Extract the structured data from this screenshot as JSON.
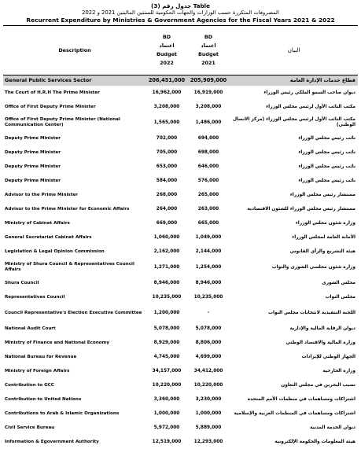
{
  "header": {
    "table_no": "جدول رقم (3) Table",
    "title_ar": "المصروفات المتكررة حسب الوزارات والجهات الحكومية للسنتين الماليتين 2021 و 2022",
    "title_en": "Recurrent Expenditure by Ministries & Government Agencies for the Fiscal Years 2021 & 2022"
  },
  "columns": {
    "description": "Description",
    "budget_2022": [
      "BD",
      "اعتماد",
      "Budget",
      "2022"
    ],
    "budget_2021": [
      "BD",
      "اعتماد",
      "Budget",
      "2021"
    ],
    "arabic": "البيان"
  },
  "sector": {
    "en": "General Public Services Sector",
    "b2022": "206,451,000",
    "b2021": "205,909,000",
    "ar": "قطاع خدمات الإدارة العامة"
  },
  "rows": [
    {
      "en": "The Court of H.R.H The Prime Minister",
      "b2022": "16,962,000",
      "b2021": "16,919,000",
      "ar": "ديوان صاحب السمو الملكي رئيس الوزراء"
    },
    {
      "en": "Office of First Deputy Prime Minister",
      "b2022": "3,208,000",
      "b2021": "3,208,000",
      "ar": "مكتب النائب الأول لرئيس مجلس الوزراء"
    },
    {
      "en": "Office of First Deputy Prime Minister (National Communication Center)",
      "b2022": "1,565,000",
      "b2021": "1,486,000",
      "ar": "مكتب النائب الأول لرئيس مجلس الوزراء (مركز الاتصال الوطني)"
    },
    {
      "en": "Deputy Prime Minister",
      "b2022": "702,000",
      "b2021": "694,000",
      "ar": "نائب رئيس مجلس الوزراء"
    },
    {
      "en": "Deputy Prime Minister",
      "b2022": "705,000",
      "b2021": "698,000",
      "ar": "نائب رئيس مجلس الوزراء"
    },
    {
      "en": "Deputy Prime Minister",
      "b2022": "653,000",
      "b2021": "646,000",
      "ar": "نائب رئيس مجلس الوزراء"
    },
    {
      "en": "Deputy Prime Minister",
      "b2022": "584,000",
      "b2021": "576,000",
      "ar": "نائب رئيس مجلس الوزراء"
    },
    {
      "en": "Advisor to the Prime Minister",
      "b2022": "268,000",
      "b2021": "265,000",
      "ar": "مستشار رئيس مجلس الوزراء"
    },
    {
      "en": "Advisor to the Prime Minister for Economic Affairs",
      "b2022": "264,000",
      "b2021": "263,000",
      "ar": "مستشار رئيس مجلس الوزراء للشئون الاقتصادية"
    },
    {
      "en": "Ministry of Cabinet Affairs",
      "b2022": "669,000",
      "b2021": "665,000",
      "ar": "وزارة شئون مجلس الوزراء"
    },
    {
      "en": "General Secretariat Cabinet Affairs",
      "b2022": "1,060,000",
      "b2021": "1,049,000",
      "ar": "الأمانة العامة لمجلس الوزراء"
    },
    {
      "en": "Legislation & Legal Opinion Commission",
      "b2022": "2,162,000",
      "b2021": "2,144,000",
      "ar": "هيئة التشريع والرأي القانوني"
    },
    {
      "en": "Ministry of Shura Council & Representatives Council Affairs",
      "b2022": "1,271,000",
      "b2021": "1,254,000",
      "ar": "وزارة شئون مجلسي الشورى والنواب"
    },
    {
      "en": "Shura Council",
      "b2022": "8,946,000",
      "b2021": "8,946,000",
      "ar": "مجلس الشورى"
    },
    {
      "en": "Representatives Council",
      "b2022": "10,235,000",
      "b2021": "10,235,000",
      "ar": "مجلس النواب"
    },
    {
      "en": "Council Representative's Election Executive Committee",
      "b2022": "1,200,000",
      "b2021": "-",
      "ar": "اللجنة التنفيذية لانتخابات مجلس النواب"
    },
    {
      "en": "National Audit Court",
      "b2022": "5,078,000",
      "b2021": "5,078,000",
      "ar": "ديوان الرقابة المالية والإدارية"
    },
    {
      "en": "Ministry of Finance and National Economy",
      "b2022": "8,929,000",
      "b2021": "8,806,000",
      "ar": "وزارة المالية والاقتصاد الوطني"
    },
    {
      "en": "National Bureau for Revenue",
      "b2022": "4,745,000",
      "b2021": "4,699,000",
      "ar": "الجهاز الوطني للإيرادات"
    },
    {
      "en": "Ministry of Foreign Affairs",
      "b2022": "34,157,000",
      "b2021": "34,412,000",
      "ar": "وزارة الخارجية"
    },
    {
      "en": "Contribution to GCC",
      "b2022": "10,220,000",
      "b2021": "10,220,000",
      "ar": "نصيب البحرين في مجلس التعاون"
    },
    {
      "en": "Contribution to United Nations",
      "b2022": "3,360,000",
      "b2021": "3,230,000",
      "ar": "اشتراكات ومساهمات في منظمات الأمم المتحدة"
    },
    {
      "en": "Contributions to Arab & Islamic Organizations",
      "b2022": "1,000,000",
      "b2021": "1,000,000",
      "ar": "اشتراكات ومساهمات في المنظمات العربية والإسلامية"
    },
    {
      "en": "Civil Service Bureau",
      "b2022": "5,972,000",
      "b2021": "5,889,000",
      "ar": "ديوان الخدمة المدنية"
    },
    {
      "en": "Information & Egovernment Authority",
      "b2022": "12,519,000",
      "b2021": "12,293,000",
      "ar": "هيئة المعلومات والحكومة الإلكترونية"
    }
  ]
}
